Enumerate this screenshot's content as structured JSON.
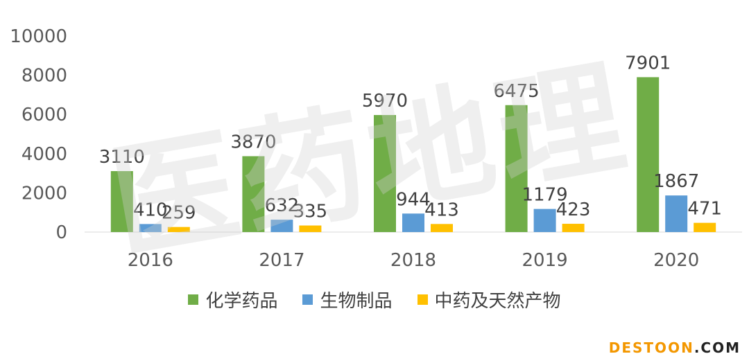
{
  "chart_data": {
    "type": "bar",
    "categories": [
      "2016",
      "2017",
      "2018",
      "2019",
      "2020"
    ],
    "series": [
      {
        "name": "化学药品",
        "values": [
          3110,
          3870,
          5970,
          6475,
          7901
        ],
        "color": "#70ad47"
      },
      {
        "name": "生物制品",
        "values": [
          410,
          632,
          944,
          1179,
          1867
        ],
        "color": "#5b9bd5"
      },
      {
        "name": "中药及天然产物",
        "values": [
          259,
          335,
          413,
          423,
          471
        ],
        "color": "#ffc000"
      }
    ],
    "yticks": [
      "0",
      "2000",
      "4000",
      "6000",
      "8000",
      "10000"
    ],
    "ylim": [
      0,
      10000
    ],
    "grid": false,
    "legend_position": "bottom"
  },
  "watermark": "医药地理",
  "brand": {
    "main": "DESTOON",
    "suffix": ".COM"
  }
}
